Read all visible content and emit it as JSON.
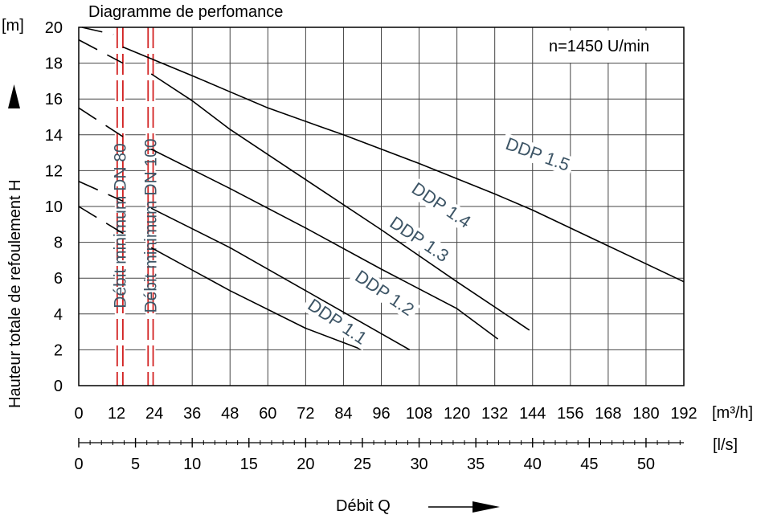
{
  "chart_data": {
    "type": "line",
    "title": "Diagramme de perfomance",
    "annotation": "n=1450 U/min",
    "xlabel": "Débit  Q",
    "ylabel": "Hauteur totale de refoulement  H",
    "y_unit": "[m]",
    "x_unit": "[m³/h]",
    "x2_unit": "[l/s]",
    "xlim": [
      0,
      192
    ],
    "ylim": [
      0,
      20
    ],
    "x_ticks": [
      0,
      12,
      24,
      36,
      48,
      60,
      72,
      84,
      96,
      108,
      120,
      132,
      144,
      156,
      168,
      180,
      192
    ],
    "y_ticks": [
      0,
      2,
      4,
      6,
      8,
      10,
      12,
      14,
      16,
      18,
      20
    ],
    "x2_ticks": [
      0,
      5,
      10,
      15,
      20,
      25,
      30,
      35,
      40,
      45,
      50
    ],
    "grid": true,
    "series": [
      {
        "name": "DDP 1.1",
        "label_at": [
          81,
          3.3
        ],
        "dashed": [
          [
            0,
            10.0
          ],
          [
            14,
            8.5
          ]
        ],
        "x": [
          23,
          48,
          72,
          90
        ],
        "y": [
          7.7,
          5.3,
          3.2,
          2.0
        ]
      },
      {
        "name": "DDP 1.2",
        "label_at": [
          96,
          4.9
        ],
        "dashed": [
          [
            0,
            11.4
          ],
          [
            14,
            10.3
          ]
        ],
        "x": [
          23,
          48,
          72,
          96,
          105
        ],
        "y": [
          9.9,
          7.7,
          5.3,
          2.9,
          2.0
        ]
      },
      {
        "name": "DDP 1.3",
        "label_at": [
          107,
          7.9
        ],
        "dashed": [
          [
            0,
            15.5
          ],
          [
            14,
            13.9
          ]
        ],
        "x": [
          23,
          48,
          72,
          96,
          120,
          133
        ],
        "y": [
          13.2,
          11.0,
          8.8,
          6.5,
          4.3,
          2.6
        ]
      },
      {
        "name": "DDP 1.4",
        "label_at": [
          114,
          9.8
        ],
        "dashed": [
          [
            0,
            19.3
          ],
          [
            14,
            18.0
          ]
        ],
        "x": [
          23,
          36,
          48,
          66,
          78,
          96,
          120,
          143
        ],
        "y": [
          17.4,
          15.9,
          14.3,
          12.2,
          10.8,
          8.7,
          5.8,
          3.1
        ]
      },
      {
        "name": "DDP 1.5",
        "label_at": [
          145,
          12.6
        ],
        "dashed": [
          [
            1,
            20.0
          ],
          [
            11,
            19.6
          ]
        ],
        "x": [
          14,
          36,
          48,
          60,
          76,
          84,
          108,
          132,
          144,
          168,
          192
        ],
        "y": [
          18.9,
          17.3,
          16.4,
          15.5,
          14.5,
          14.0,
          12.4,
          10.7,
          9.8,
          7.8,
          5.8
        ]
      }
    ],
    "min_flow_lines": [
      {
        "name": "Débit minimum DN 80",
        "x": [
          12.2,
          14.0
        ]
      },
      {
        "name": "Débit minimum DN 100",
        "x": [
          22.0,
          23.6
        ]
      }
    ]
  }
}
